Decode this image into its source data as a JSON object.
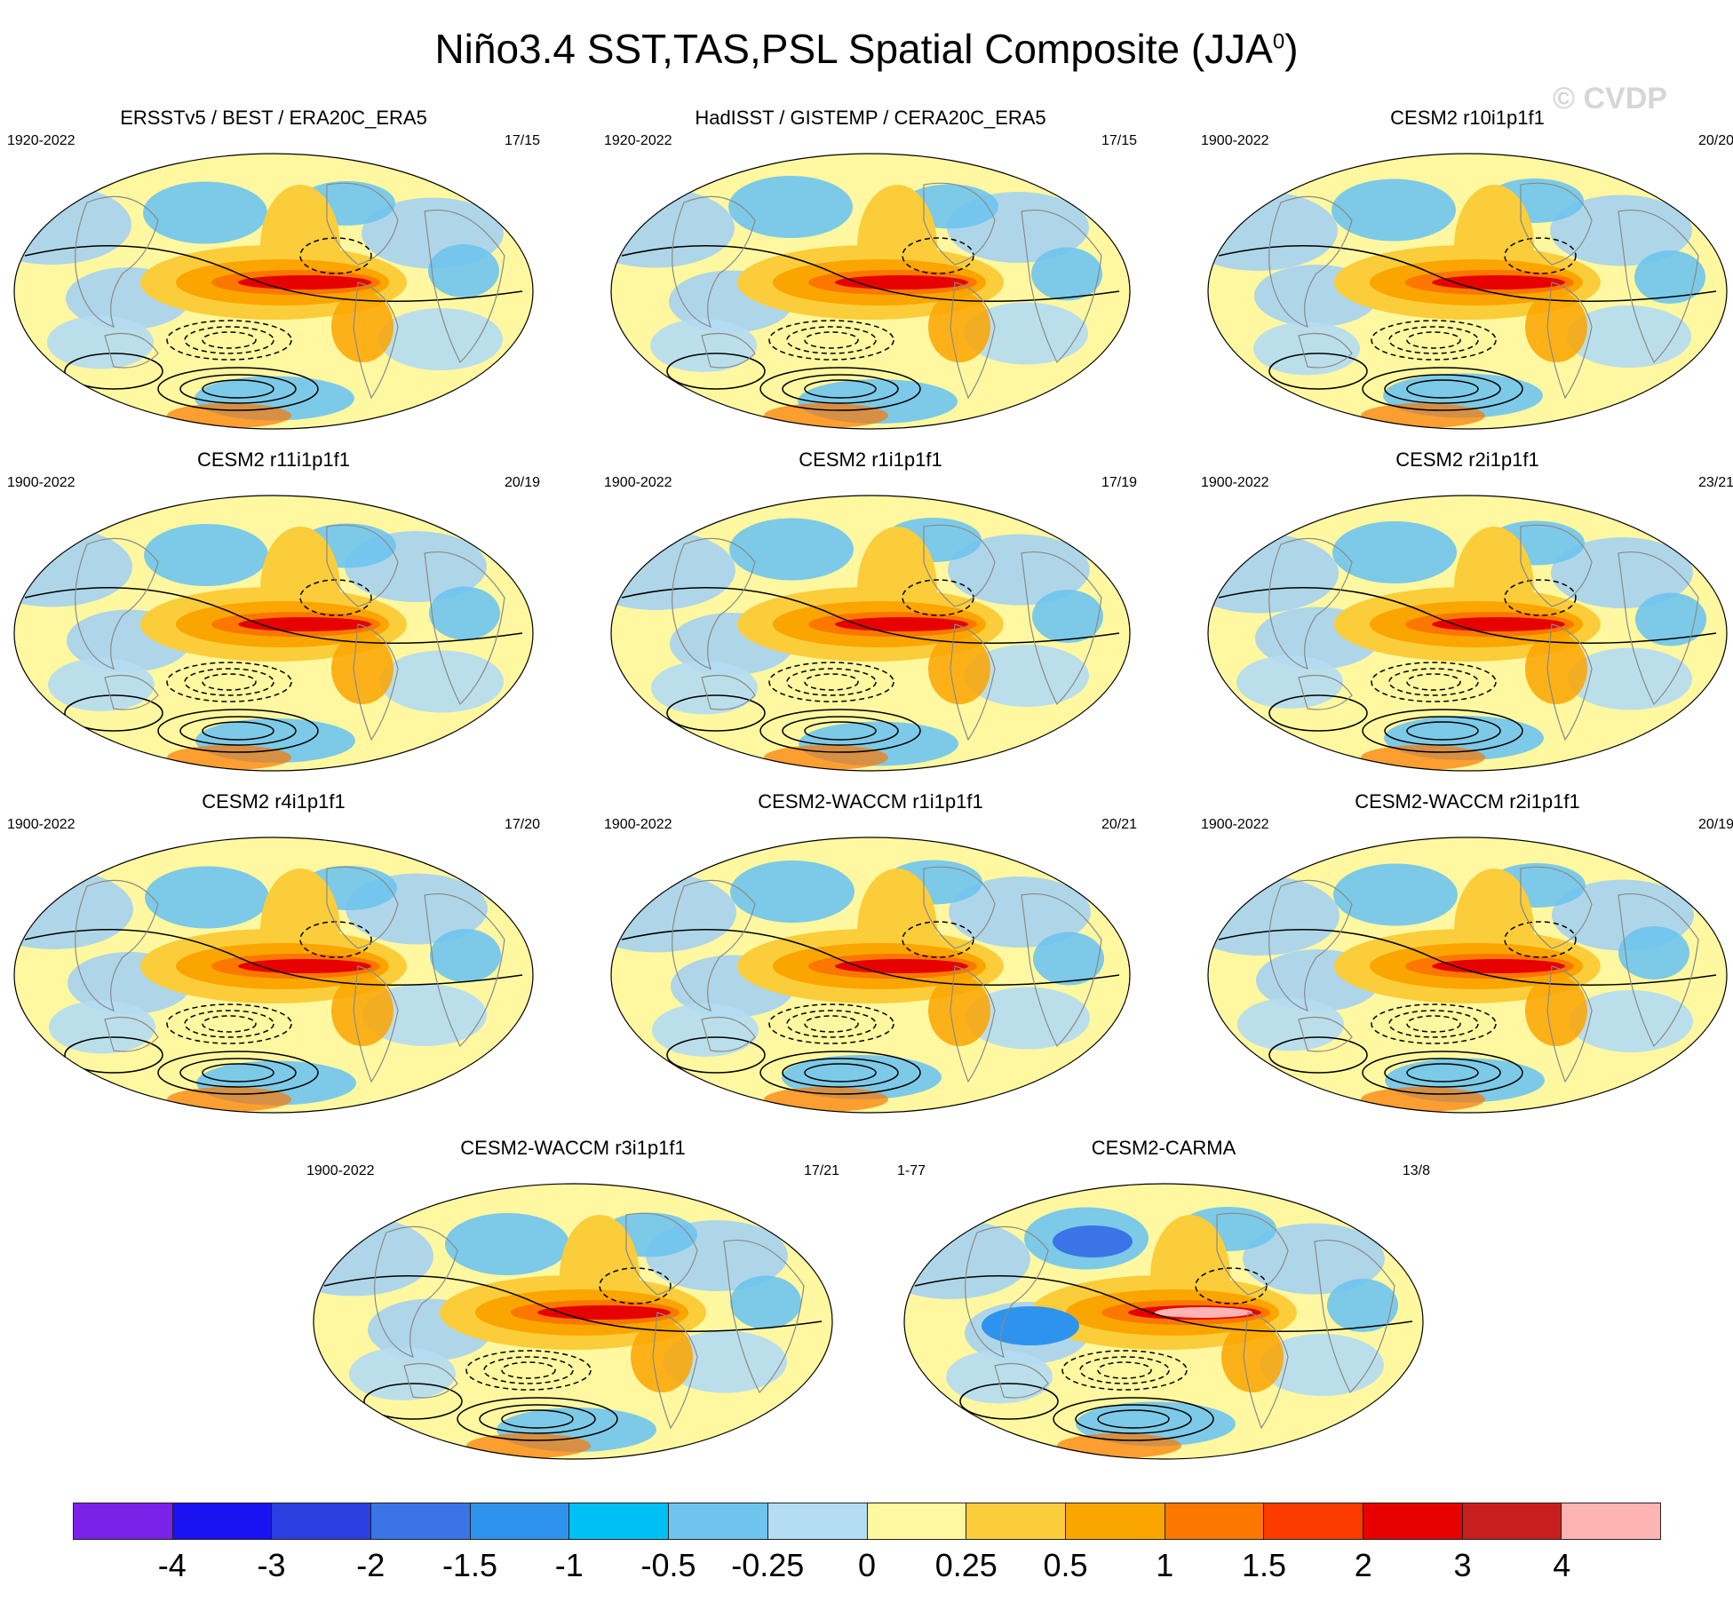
{
  "title_main": "Niño3.4 SST,TAS,PSL Spatial Composite (JJA",
  "title_sup": "0",
  "title_close": ")",
  "watermark": "© CVDP",
  "chart_data": {
    "type": "heatmap",
    "description_type": "spatial composite maps (filled SST/TAS shading, PSL contours)",
    "panels": [
      {
        "title": "ERSSTv5 / BEST / ERA20C_ERA5",
        "years": "1920-2022",
        "count": "17/15"
      },
      {
        "title": "HadISST / GISTEMP / CERA20C_ERA5",
        "years": "1920-2022",
        "count": "17/15"
      },
      {
        "title": "CESM2 r10i1p1f1",
        "years": "1900-2022",
        "count": "20/20"
      },
      {
        "title": "CESM2 r11i1p1f1",
        "years": "1900-2022",
        "count": "20/19"
      },
      {
        "title": "CESM2 r1i1p1f1",
        "years": "1900-2022",
        "count": "17/19"
      },
      {
        "title": "CESM2 r2i1p1f1",
        "years": "1900-2022",
        "count": "23/21"
      },
      {
        "title": "CESM2 r4i1p1f1",
        "years": "1900-2022",
        "count": "17/20"
      },
      {
        "title": "CESM2-WACCM r1i1p1f1",
        "years": "1900-2022",
        "count": "20/21"
      },
      {
        "title": "CESM2-WACCM r2i1p1f1",
        "years": "1900-2022",
        "count": "20/19"
      },
      {
        "title": "CESM2-WACCM r3i1p1f1",
        "years": "1900-2022",
        "count": "17/21"
      },
      {
        "title": "CESM2-CARMA",
        "years": "1-77",
        "count": "13/8"
      }
    ],
    "colorbar": {
      "labels": [
        "-4",
        "-3",
        "-2",
        "-1.5",
        "-1",
        "-0.5",
        "-0.25",
        "0",
        "0.25",
        "0.5",
        "1",
        "1.5",
        "2",
        "3",
        "4"
      ],
      "colors": [
        "#7b22e8",
        "#1a12f0",
        "#2c3fe0",
        "#3a74e6",
        "#2e93ee",
        "#00bff5",
        "#6ec4ee",
        "#b4dcf2",
        "#fff8a0",
        "#fbcd3a",
        "#fba500",
        "#fb7700",
        "#fb3b00",
        "#e60000",
        "#c81e1e",
        "#ffb4b4"
      ]
    }
  }
}
